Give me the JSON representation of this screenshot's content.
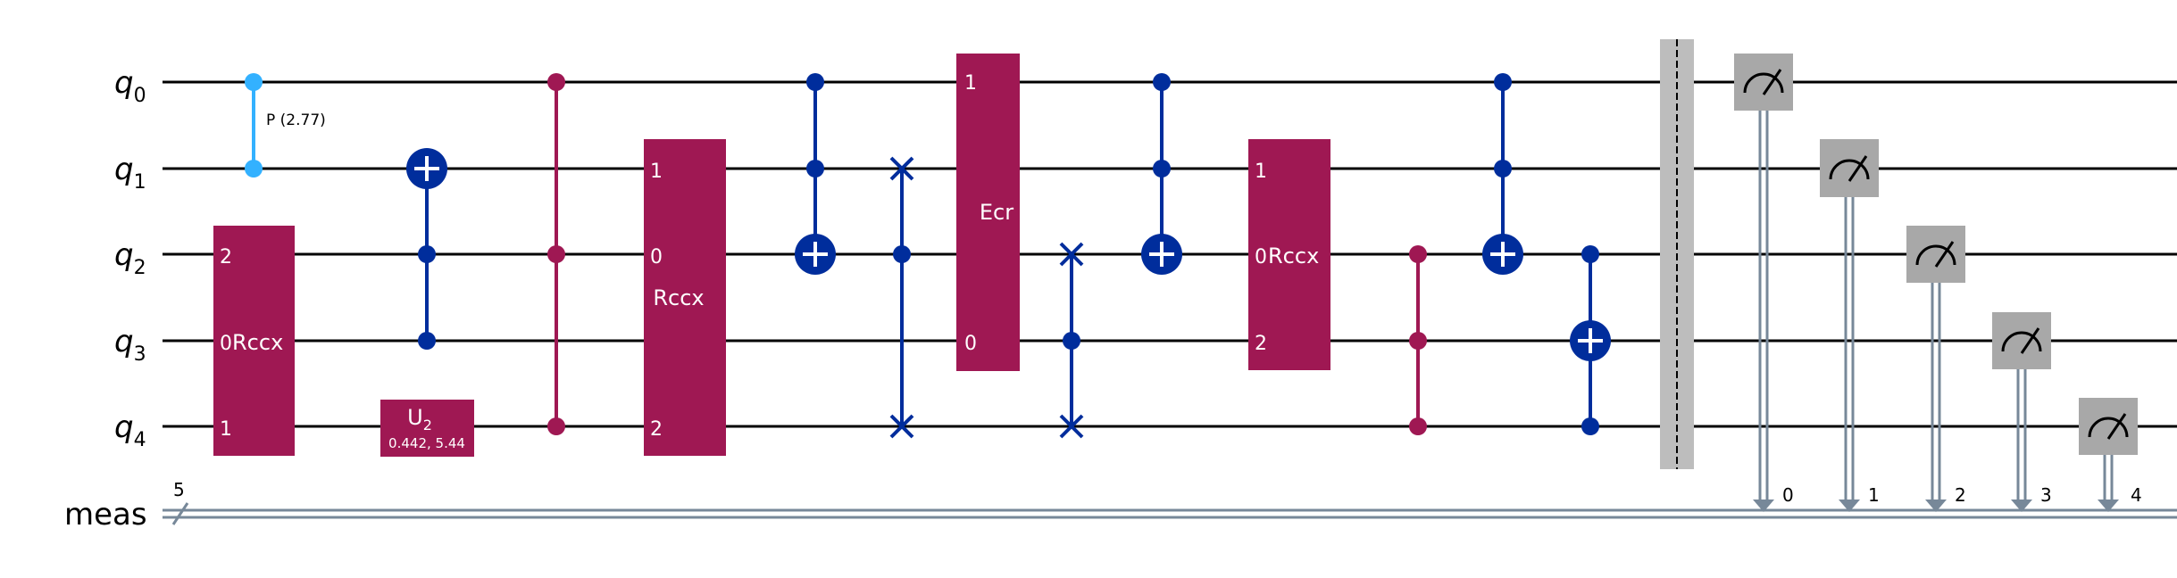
{
  "diagram": {
    "wires": [
      {
        "label": "q",
        "sub": "0"
      },
      {
        "label": "q",
        "sub": "1"
      },
      {
        "label": "q",
        "sub": "2"
      },
      {
        "label": "q",
        "sub": "3"
      },
      {
        "label": "q",
        "sub": "4"
      }
    ],
    "classical": {
      "label": "meas",
      "width": "5",
      "bits": [
        "0",
        "1",
        "2",
        "3",
        "4"
      ]
    },
    "gates": {
      "cphase": {
        "param": "P (2.77)"
      },
      "rccx1": {
        "name": "Rccx",
        "ports": [
          "2",
          "0",
          "1"
        ]
      },
      "u2": {
        "name": "U",
        "sub": "2",
        "params": "0.442, 5.44"
      },
      "rccx2": {
        "name": "Rccx",
        "ports": [
          "1",
          "0",
          "2"
        ]
      },
      "ecr": {
        "name": "Ecr",
        "ports": [
          "1",
          "0"
        ]
      },
      "rccx3": {
        "name": "Rccx",
        "ports": [
          "1",
          "0",
          "2"
        ]
      }
    }
  },
  "colors": {
    "wire": "#000000",
    "control_light": "#33b1ff",
    "control_blue": "#002d9c",
    "custom_gate": "#9f1853",
    "measure_box": "#a8a8a8",
    "classical": "#778899",
    "barrier": "#bdbdbd"
  }
}
